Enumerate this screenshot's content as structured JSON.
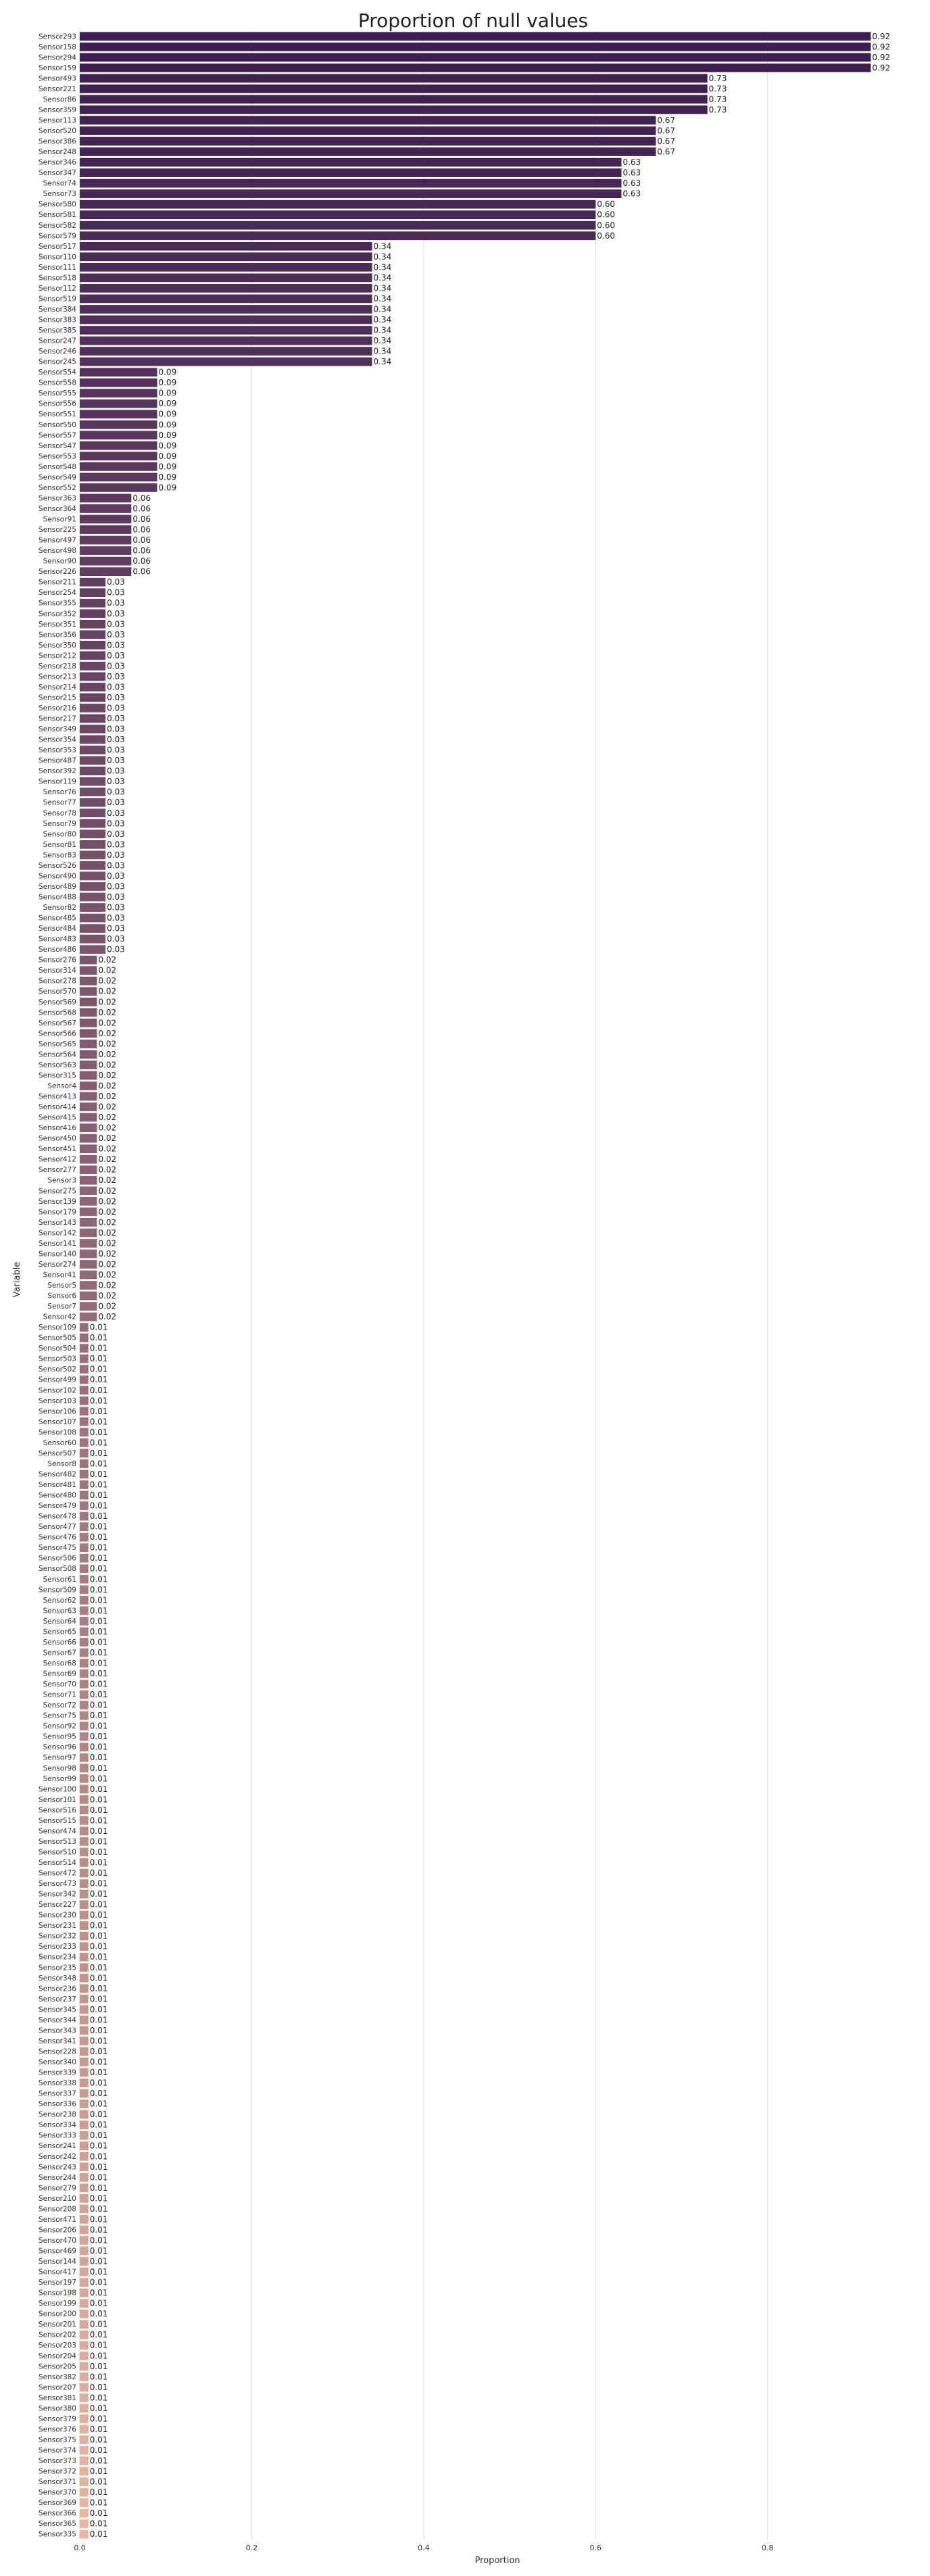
{
  "chart_data": {
    "type": "bar",
    "orientation": "horizontal",
    "title": "Proportion of null values",
    "xlabel": "Proportion",
    "ylabel": "Variable",
    "xlim": [
      0,
      0.97
    ],
    "xticks": [
      0.0,
      0.2,
      0.4,
      0.6,
      0.8
    ],
    "xtick_labels": [
      "0.0",
      "0.2",
      "0.4",
      "0.6",
      "0.8"
    ],
    "grid": true,
    "palette": {
      "start": "#3c1d4f",
      "end": "#e9b6a0",
      "grid": "#d9d9d9",
      "text": "#333333"
    },
    "categories": [
      "Sensor293",
      "Sensor158",
      "Sensor294",
      "Sensor159",
      "Sensor493",
      "Sensor221",
      "Sensor86",
      "Sensor359",
      "Sensor113",
      "Sensor520",
      "Sensor386",
      "Sensor248",
      "Sensor346",
      "Sensor347",
      "Sensor74",
      "Sensor73",
      "Sensor580",
      "Sensor581",
      "Sensor582",
      "Sensor579",
      "Sensor517",
      "Sensor110",
      "Sensor111",
      "Sensor518",
      "Sensor112",
      "Sensor519",
      "Sensor384",
      "Sensor383",
      "Sensor385",
      "Sensor247",
      "Sensor246",
      "Sensor245",
      "Sensor554",
      "Sensor558",
      "Sensor555",
      "Sensor556",
      "Sensor551",
      "Sensor550",
      "Sensor557",
      "Sensor547",
      "Sensor553",
      "Sensor548",
      "Sensor549",
      "Sensor552",
      "Sensor363",
      "Sensor364",
      "Sensor91",
      "Sensor225",
      "Sensor497",
      "Sensor498",
      "Sensor90",
      "Sensor226",
      "Sensor211",
      "Sensor254",
      "Sensor355",
      "Sensor352",
      "Sensor351",
      "Sensor356",
      "Sensor350",
      "Sensor212",
      "Sensor218",
      "Sensor213",
      "Sensor214",
      "Sensor215",
      "Sensor216",
      "Sensor217",
      "Sensor349",
      "Sensor354",
      "Sensor353",
      "Sensor487",
      "Sensor392",
      "Sensor119",
      "Sensor76",
      "Sensor77",
      "Sensor78",
      "Sensor79",
      "Sensor80",
      "Sensor81",
      "Sensor83",
      "Sensor526",
      "Sensor490",
      "Sensor489",
      "Sensor488",
      "Sensor82",
      "Sensor485",
      "Sensor484",
      "Sensor483",
      "Sensor486",
      "Sensor276",
      "Sensor314",
      "Sensor278",
      "Sensor570",
      "Sensor569",
      "Sensor568",
      "Sensor567",
      "Sensor566",
      "Sensor565",
      "Sensor564",
      "Sensor563",
      "Sensor315",
      "Sensor4",
      "Sensor413",
      "Sensor414",
      "Sensor415",
      "Sensor416",
      "Sensor450",
      "Sensor451",
      "Sensor412",
      "Sensor277",
      "Sensor3",
      "Sensor275",
      "Sensor139",
      "Sensor179",
      "Sensor143",
      "Sensor142",
      "Sensor141",
      "Sensor140",
      "Sensor274",
      "Sensor41",
      "Sensor5",
      "Sensor6",
      "Sensor7",
      "Sensor42",
      "Sensor109",
      "Sensor505",
      "Sensor504",
      "Sensor503",
      "Sensor502",
      "Sensor499",
      "Sensor102",
      "Sensor103",
      "Sensor106",
      "Sensor107",
      "Sensor108",
      "Sensor60",
      "Sensor507",
      "Sensor8",
      "Sensor482",
      "Sensor481",
      "Sensor480",
      "Sensor479",
      "Sensor478",
      "Sensor477",
      "Sensor476",
      "Sensor475",
      "Sensor506",
      "Sensor508",
      "Sensor61",
      "Sensor509",
      "Sensor62",
      "Sensor63",
      "Sensor64",
      "Sensor65",
      "Sensor66",
      "Sensor67",
      "Sensor68",
      "Sensor69",
      "Sensor70",
      "Sensor71",
      "Sensor72",
      "Sensor75",
      "Sensor92",
      "Sensor95",
      "Sensor96",
      "Sensor97",
      "Sensor98",
      "Sensor99",
      "Sensor100",
      "Sensor101",
      "Sensor516",
      "Sensor515",
      "Sensor474",
      "Sensor513",
      "Sensor510",
      "Sensor514",
      "Sensor472",
      "Sensor473",
      "Sensor342",
      "Sensor227",
      "Sensor230",
      "Sensor231",
      "Sensor232",
      "Sensor233",
      "Sensor234",
      "Sensor235",
      "Sensor348",
      "Sensor236",
      "Sensor237",
      "Sensor345",
      "Sensor344",
      "Sensor343",
      "Sensor341",
      "Sensor228",
      "Sensor340",
      "Sensor339",
      "Sensor338",
      "Sensor337",
      "Sensor336",
      "Sensor238",
      "Sensor334",
      "Sensor333",
      "Sensor241",
      "Sensor242",
      "Sensor243",
      "Sensor244",
      "Sensor279",
      "Sensor210",
      "Sensor208",
      "Sensor471",
      "Sensor206",
      "Sensor470",
      "Sensor469",
      "Sensor144",
      "Sensor417",
      "Sensor197",
      "Sensor198",
      "Sensor199",
      "Sensor200",
      "Sensor201",
      "Sensor202",
      "Sensor203",
      "Sensor204",
      "Sensor205",
      "Sensor382",
      "Sensor207",
      "Sensor381",
      "Sensor380",
      "Sensor379",
      "Sensor376",
      "Sensor375",
      "Sensor374",
      "Sensor373",
      "Sensor372",
      "Sensor371",
      "Sensor370",
      "Sensor369",
      "Sensor366",
      "Sensor365",
      "Sensor335"
    ],
    "values": [
      0.92,
      0.92,
      0.92,
      0.92,
      0.73,
      0.73,
      0.73,
      0.73,
      0.67,
      0.67,
      0.67,
      0.67,
      0.63,
      0.63,
      0.63,
      0.63,
      0.6,
      0.6,
      0.6,
      0.6,
      0.34,
      0.34,
      0.34,
      0.34,
      0.34,
      0.34,
      0.34,
      0.34,
      0.34,
      0.34,
      0.34,
      0.34,
      0.09,
      0.09,
      0.09,
      0.09,
      0.09,
      0.09,
      0.09,
      0.09,
      0.09,
      0.09,
      0.09,
      0.09,
      0.06,
      0.06,
      0.06,
      0.06,
      0.06,
      0.06,
      0.06,
      0.06,
      0.03,
      0.03,
      0.03,
      0.03,
      0.03,
      0.03,
      0.03,
      0.03,
      0.03,
      0.03,
      0.03,
      0.03,
      0.03,
      0.03,
      0.03,
      0.03,
      0.03,
      0.03,
      0.03,
      0.03,
      0.03,
      0.03,
      0.03,
      0.03,
      0.03,
      0.03,
      0.03,
      0.03,
      0.03,
      0.03,
      0.03,
      0.03,
      0.03,
      0.03,
      0.03,
      0.03,
      0.02,
      0.02,
      0.02,
      0.02,
      0.02,
      0.02,
      0.02,
      0.02,
      0.02,
      0.02,
      0.02,
      0.02,
      0.02,
      0.02,
      0.02,
      0.02,
      0.02,
      0.02,
      0.02,
      0.02,
      0.02,
      0.02,
      0.02,
      0.02,
      0.02,
      0.02,
      0.02,
      0.02,
      0.02,
      0.02,
      0.02,
      0.02,
      0.02,
      0.02,
      0.02,
      0.01,
      0.01,
      0.01,
      0.01,
      0.01,
      0.01,
      0.01,
      0.01,
      0.01,
      0.01,
      0.01,
      0.01,
      0.01,
      0.01,
      0.01,
      0.01,
      0.01,
      0.01,
      0.01,
      0.01,
      0.01,
      0.01,
      0.01,
      0.01,
      0.01,
      0.01,
      0.01,
      0.01,
      0.01,
      0.01,
      0.01,
      0.01,
      0.01,
      0.01,
      0.01,
      0.01,
      0.01,
      0.01,
      0.01,
      0.01,
      0.01,
      0.01,
      0.01,
      0.01,
      0.01,
      0.01,
      0.01,
      0.01,
      0.01,
      0.01,
      0.01,
      0.01,
      0.01,
      0.01,
      0.01,
      0.01,
      0.01,
      0.01,
      0.01,
      0.01,
      0.01,
      0.01,
      0.01,
      0.01,
      0.01,
      0.01,
      0.01,
      0.01,
      0.01,
      0.01,
      0.01,
      0.01,
      0.01,
      0.01,
      0.01,
      0.01,
      0.01,
      0.01,
      0.01,
      0.01,
      0.01,
      0.01,
      0.01,
      0.01,
      0.01,
      0.01,
      0.01,
      0.01,
      0.01,
      0.01,
      0.01,
      0.01,
      0.01,
      0.01,
      0.01,
      0.01,
      0.01,
      0.01,
      0.01,
      0.01,
      0.01,
      0.01,
      0.01,
      0.01,
      0.01,
      0.01,
      0.01,
      0.01,
      0.01,
      0.01,
      0.01,
      0.01,
      0.01,
      0.01,
      0.01,
      0.01
    ],
    "value_labels": [
      "0.92",
      "0.92",
      "0.92",
      "0.92",
      "0.73",
      "0.73",
      "0.73",
      "0.73",
      "0.67",
      "0.67",
      "0.67",
      "0.67",
      "0.63",
      "0.63",
      "0.63",
      "0.63",
      "0.60",
      "0.60",
      "0.60",
      "0.60",
      "0.34",
      "0.34",
      "0.34",
      "0.34",
      "0.34",
      "0.34",
      "0.34",
      "0.34",
      "0.34",
      "0.34",
      "0.34",
      "0.34",
      "0.09",
      "0.09",
      "0.09",
      "0.09",
      "0.09",
      "0.09",
      "0.09",
      "0.09",
      "0.09",
      "0.09",
      "0.09",
      "0.09",
      "0.06",
      "0.06",
      "0.06",
      "0.06",
      "0.06",
      "0.06",
      "0.06",
      "0.06",
      "0.03",
      "0.03",
      "0.03",
      "0.03",
      "0.03",
      "0.03",
      "0.03",
      "0.03",
      "0.03",
      "0.03",
      "0.03",
      "0.03",
      "0.03",
      "0.03",
      "0.03",
      "0.03",
      "0.03",
      "0.03",
      "0.03",
      "0.03",
      "0.03",
      "0.03",
      "0.03",
      "0.03",
      "0.03",
      "0.03",
      "0.03",
      "0.03",
      "0.03",
      "0.03",
      "0.03",
      "0.03",
      "0.03",
      "0.03",
      "0.03",
      "0.03",
      "0.02",
      "0.02",
      "0.02",
      "0.02",
      "0.02",
      "0.02",
      "0.02",
      "0.02",
      "0.02",
      "0.02",
      "0.02",
      "0.02",
      "0.02",
      "0.02",
      "0.02",
      "0.02",
      "0.02",
      "0.02",
      "0.02",
      "0.02",
      "0.02",
      "0.02",
      "0.02",
      "0.02",
      "0.02",
      "0.02",
      "0.02",
      "0.02",
      "0.02",
      "0.02",
      "0.02",
      "0.02",
      "0.02",
      "0.02",
      "0.02",
      "0.01",
      "0.01",
      "0.01",
      "0.01",
      "0.01",
      "0.01",
      "0.01",
      "0.01",
      "0.01",
      "0.01",
      "0.01",
      "0.01",
      "0.01",
      "0.01",
      "0.01",
      "0.01",
      "0.01",
      "0.01",
      "0.01",
      "0.01",
      "0.01",
      "0.01",
      "0.01",
      "0.01",
      "0.01",
      "0.01",
      "0.01",
      "0.01",
      "0.01",
      "0.01",
      "0.01",
      "0.01",
      "0.01",
      "0.01",
      "0.01",
      "0.01",
      "0.01",
      "0.01",
      "0.01",
      "0.01",
      "0.01",
      "0.01",
      "0.01",
      "0.01",
      "0.01",
      "0.01",
      "0.01",
      "0.01",
      "0.01",
      "0.01",
      "0.01",
      "0.01",
      "0.01",
      "0.01",
      "0.01",
      "0.01",
      "0.01",
      "0.01",
      "0.01",
      "0.01",
      "0.01",
      "0.01",
      "0.01",
      "0.01",
      "0.01",
      "0.01",
      "0.01",
      "0.01",
      "0.01",
      "0.01",
      "0.01",
      "0.01",
      "0.01",
      "0.01",
      "0.01",
      "0.01",
      "0.01",
      "0.01",
      "0.01",
      "0.01",
      "0.01",
      "0.01",
      "0.01",
      "0.01",
      "0.01",
      "0.01",
      "0.01",
      "0.01",
      "0.01",
      "0.01",
      "0.01",
      "0.01",
      "0.01",
      "0.01",
      "0.01",
      "0.01",
      "0.01",
      "0.01",
      "0.01",
      "0.01",
      "0.01",
      "0.01",
      "0.01",
      "0.01",
      "0.01",
      "0.01",
      "0.01",
      "0.01",
      "0.01",
      "0.01",
      "0.01",
      "0.01",
      "0.01",
      "0.01",
      "0.01",
      "0.01"
    ]
  }
}
